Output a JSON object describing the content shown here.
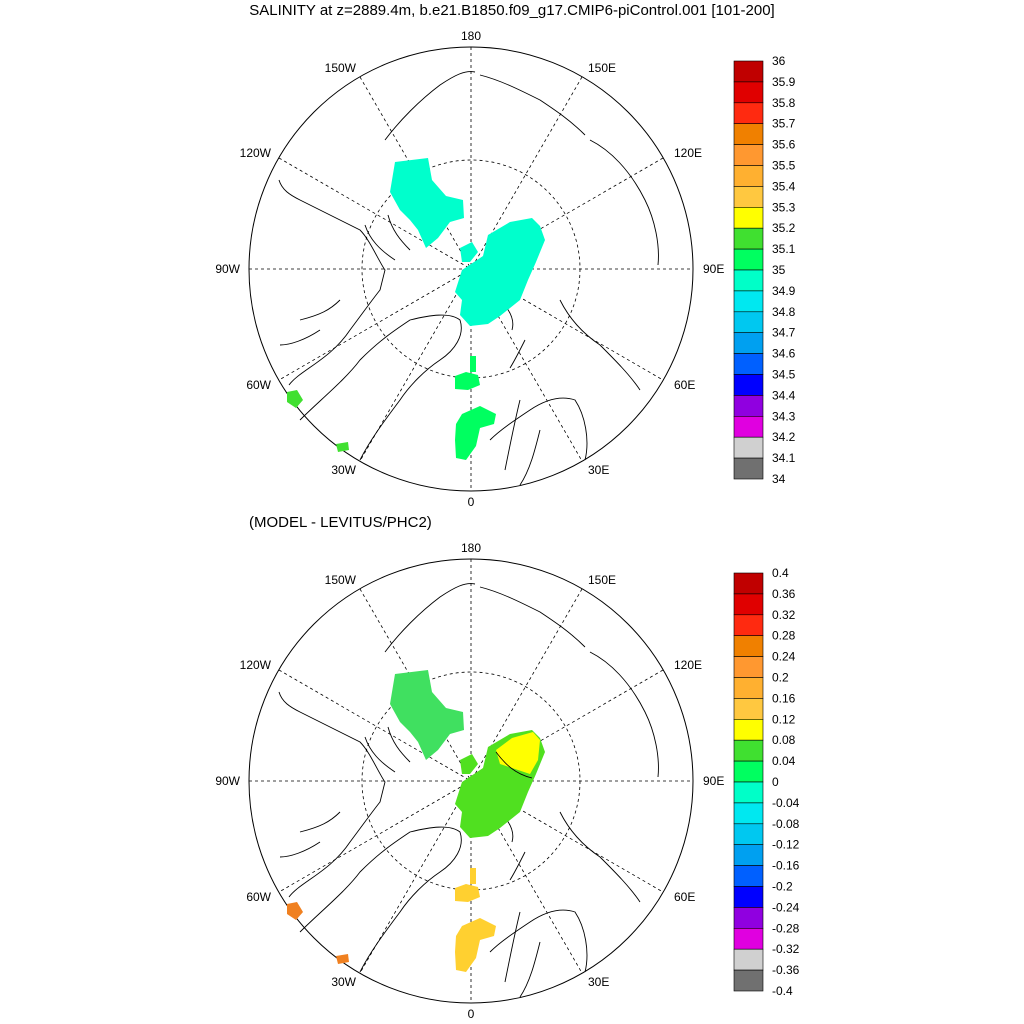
{
  "title": "SALINITY at z=2889.4m, b.e21.B1850.f09_g17.CMIP6-piControl.001 [101-200]",
  "subtitle": "(MODEL - LEVITUS/PHC2)",
  "lon_labels": {
    "top": "180",
    "bottom": "0",
    "left": "90W",
    "right": "90E",
    "ul1": "150W",
    "ul2": "120W",
    "ur1": "150E",
    "ur2": "120E",
    "ll1": "60W",
    "ll2": "30W",
    "lr1": "60E",
    "lr2": "30E"
  },
  "panels": [
    {
      "name": "salinity",
      "colorbar": {
        "labels": [
          "36",
          "35.9",
          "35.8",
          "35.7",
          "35.6",
          "35.5",
          "35.4",
          "35.3",
          "35.2",
          "35.1",
          "35",
          "34.9",
          "34.8",
          "34.7",
          "34.6",
          "34.5",
          "34.4",
          "34.3",
          "34.2",
          "34.1",
          "34"
        ],
        "colors": [
          "#c00000",
          "#e00000",
          "#ff2a10",
          "#f08000",
          "#ff9830",
          "#ffb030",
          "#ffc840",
          "#ffff00",
          "#40e030",
          "#00ff60",
          "#00ffc8",
          "#00e8f0",
          "#00c8f0",
          "#00a0f0",
          "#0060ff",
          "#0000ff",
          "#9000e0",
          "#e000e0",
          "#d0d0d0",
          "#707070"
        ]
      },
      "regions": [
        {
          "name": "canada-basin",
          "color": "#00ffcc"
        },
        {
          "name": "eurasian-basin",
          "color": "#00ffcc"
        },
        {
          "name": "fram-strait",
          "color": "#00ff60"
        },
        {
          "name": "greenland-sea",
          "color": "#00ff60"
        },
        {
          "name": "norwegian-sea",
          "color": "#00ff60"
        },
        {
          "name": "labrador-sea",
          "color": "#40e030"
        },
        {
          "name": "north-atlantic",
          "color": "#40e030"
        }
      ]
    },
    {
      "name": "difference",
      "colorbar": {
        "labels": [
          "0.4",
          "0.36",
          "0.32",
          "0.28",
          "0.24",
          "0.2",
          "0.16",
          "0.12",
          "0.08",
          "0.04",
          "0",
          "-0.04",
          "-0.08",
          "-0.12",
          "-0.16",
          "-0.2",
          "-0.24",
          "-0.28",
          "-0.32",
          "-0.36",
          "-0.4"
        ],
        "colors": [
          "#c00000",
          "#e00000",
          "#ff2a10",
          "#f08000",
          "#ff9830",
          "#ffb030",
          "#ffc840",
          "#ffff00",
          "#40e030",
          "#00ff60",
          "#00ffc8",
          "#00e8f0",
          "#00c8f0",
          "#00a0f0",
          "#0060ff",
          "#0000ff",
          "#9000e0",
          "#e000e0",
          "#d0d0d0",
          "#707070"
        ]
      },
      "regions": [
        {
          "name": "canada-basin",
          "color": "#40e060"
        },
        {
          "name": "eurasian-basin",
          "color": "#50e020"
        },
        {
          "name": "eurasian-basin-north",
          "color": "#ffff00"
        },
        {
          "name": "fram-strait",
          "color": "#ffd030"
        },
        {
          "name": "greenland-sea",
          "color": "#ffd030"
        },
        {
          "name": "norwegian-sea",
          "color": "#ffd030"
        },
        {
          "name": "labrador-sea",
          "color": "#f08020"
        },
        {
          "name": "north-atlantic",
          "color": "#f08020"
        }
      ]
    }
  ]
}
